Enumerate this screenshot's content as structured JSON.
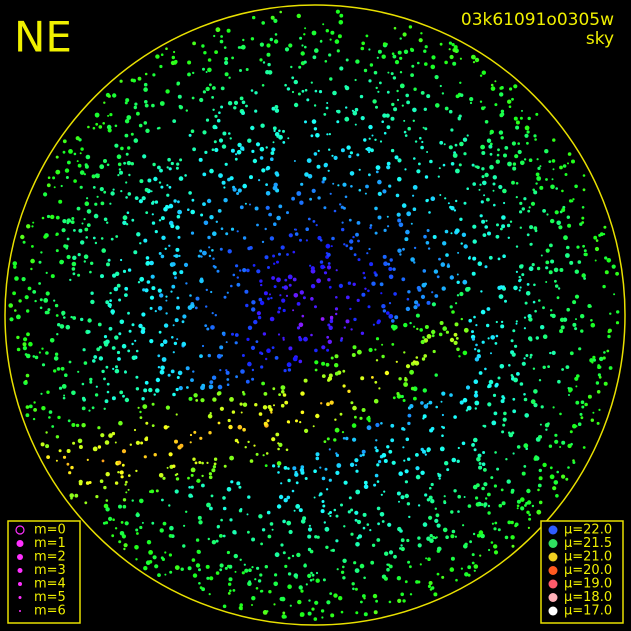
{
  "title": "NE",
  "image_id": "03k61091o0305w",
  "subtitle": "sky",
  "magnitude_legend": [
    {
      "label": "m=0"
    },
    {
      "label": "m=1"
    },
    {
      "label": "m=2"
    },
    {
      "label": "m=3"
    },
    {
      "label": "m=4"
    },
    {
      "label": "m=5"
    },
    {
      "label": "m=6"
    }
  ],
  "brightness_legend": [
    {
      "label": "μ=22.0",
      "color": "#2f5cff"
    },
    {
      "label": "μ=21.5",
      "color": "#2fe060"
    },
    {
      "label": "μ=21.0",
      "color": "#f0d020"
    },
    {
      "label": "μ=20.0",
      "color": "#ff5a20"
    },
    {
      "label": "μ=19.0",
      "color": "#ff5a6a"
    },
    {
      "label": "μ=18.0",
      "color": "#ffb0b8"
    },
    {
      "label": "μ=17.0",
      "color": "#ffffff"
    }
  ]
}
